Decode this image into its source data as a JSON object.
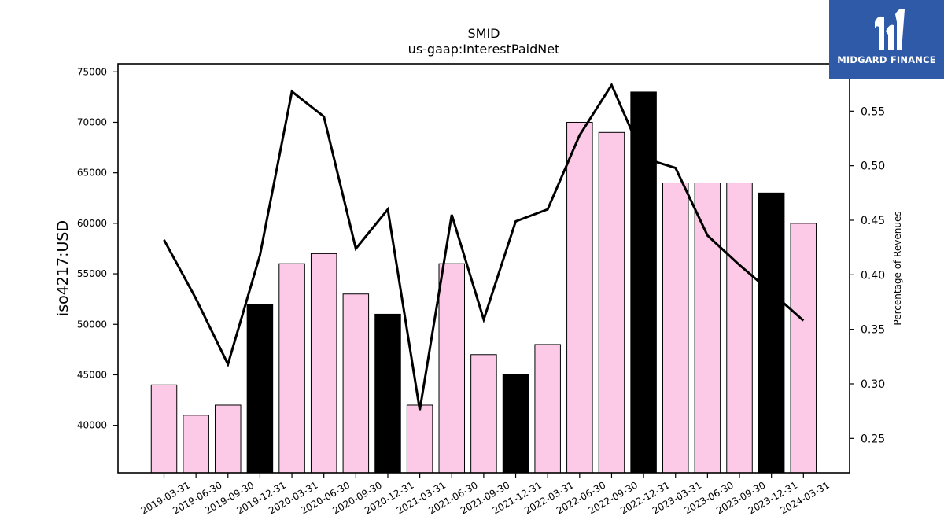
{
  "chart_data": {
    "type": "bar",
    "title": "SMID",
    "subtitle": "us-gaap:InterestPaidNet",
    "ylabel": "iso4217:USD",
    "y2label": "Percentage of Revenues",
    "categories": [
      "2019-03-31",
      "2019-06-30",
      "2019-09-30",
      "2019-12-31",
      "2020-03-31",
      "2020-06-30",
      "2020-09-30",
      "2020-12-31",
      "2021-03-31",
      "2021-06-30",
      "2021-09-30",
      "2021-12-31",
      "2022-03-31",
      "2022-06-30",
      "2022-09-30",
      "2022-12-31",
      "2023-03-31",
      "2023-06-30",
      "2023-09-30",
      "2023-12-31",
      "2024-03-31"
    ],
    "series": [
      {
        "kind": "bar",
        "values": [
          44000,
          41000,
          42000,
          52000,
          56000,
          57000,
          53000,
          51000,
          42000,
          56000,
          47000,
          45000,
          48000,
          70000,
          69000,
          73000,
          64000,
          64000,
          64000,
          63000,
          60000
        ],
        "highlight": [
          false,
          false,
          false,
          true,
          false,
          false,
          false,
          true,
          false,
          false,
          false,
          true,
          false,
          false,
          false,
          true,
          false,
          false,
          false,
          true,
          false
        ]
      },
      {
        "kind": "line",
        "axis": "right",
        "values": [
          0.432,
          0.378,
          0.318,
          0.418,
          0.568,
          0.545,
          0.424,
          0.46,
          0.276,
          0.455,
          0.359,
          0.449,
          0.46,
          0.528,
          0.574,
          0.507,
          0.498,
          0.436,
          0.409,
          0.384,
          0.358
        ]
      }
    ],
    "ylim": [
      35300,
      75800
    ],
    "y2lim": [
      0.2185,
      0.5935
    ],
    "yticks": [
      40000,
      45000,
      50000,
      55000,
      60000,
      65000,
      70000,
      75000
    ],
    "y2ticks": [
      "0.25",
      "0.30",
      "0.35",
      "0.40",
      "0.45",
      "0.50",
      "0.55"
    ],
    "colors": {
      "bar": "#fccae6",
      "bar_highlight": "#000000",
      "line": "#000000",
      "bar_edge": "#000000"
    },
    "grid": false
  },
  "logo": {
    "text": "MIDGARD FINANCE",
    "bg": "#2f5aa8",
    "icon": "midgard-logo-icon"
  }
}
